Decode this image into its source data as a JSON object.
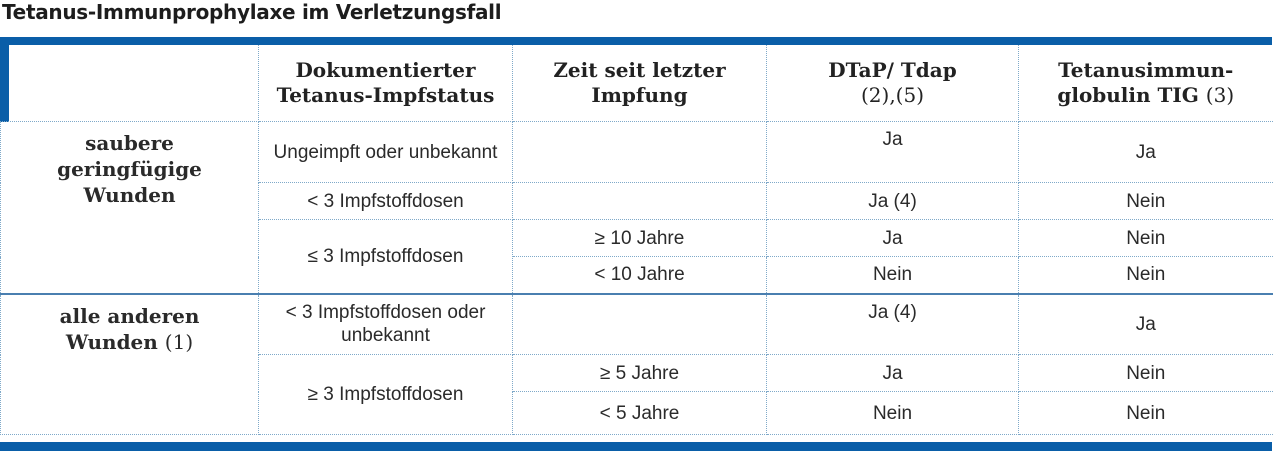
{
  "title": "Tetanus-Immunprophylaxe im Verletzungsfall",
  "colors": {
    "accent": "#0a5ea8",
    "grid": "#7fa9c9"
  },
  "header": {
    "col1": "",
    "col2": "Dokumentierter Tetanus-Impfstatus",
    "col3": "Zeit seit letzter Impfung",
    "col4": "DTaP/ Tdap",
    "col4_note": "(2),(5)",
    "col5": "Tetanusimmun-globulin TIG",
    "col5_note": "(3)"
  },
  "groups": [
    {
      "label": "saubere geringfügige Wunden",
      "note": "",
      "rows": [
        {
          "status": "Ungeimpft oder unbekannt",
          "time": "",
          "dtap": "Ja",
          "tig": "Ja"
        },
        {
          "status": "< 3 Impfstoffdosen",
          "time": "",
          "dtap": "Ja (4)",
          "tig": "Nein"
        },
        {
          "status": "≤ 3 Impfstoffdosen",
          "time": "≥ 10 Jahre",
          "dtap": "Ja",
          "tig": "Nein"
        },
        {
          "status": "",
          "time": "< 10 Jahre",
          "dtap": "Nein",
          "tig": "Nein"
        }
      ]
    },
    {
      "label": "alle anderen Wunden",
      "note": "(1)",
      "rows": [
        {
          "status": "< 3 Impfstoffdosen oder unbekannt",
          "time": "",
          "dtap": "Ja (4)",
          "tig": "Ja"
        },
        {
          "status": "≥ 3 Impfstoffdosen",
          "time": "≥ 5 Jahre",
          "dtap": "Ja",
          "tig": "Nein"
        },
        {
          "status": "",
          "time": "< 5 Jahre",
          "dtap": "Nein",
          "tig": "Nein"
        }
      ]
    }
  ]
}
